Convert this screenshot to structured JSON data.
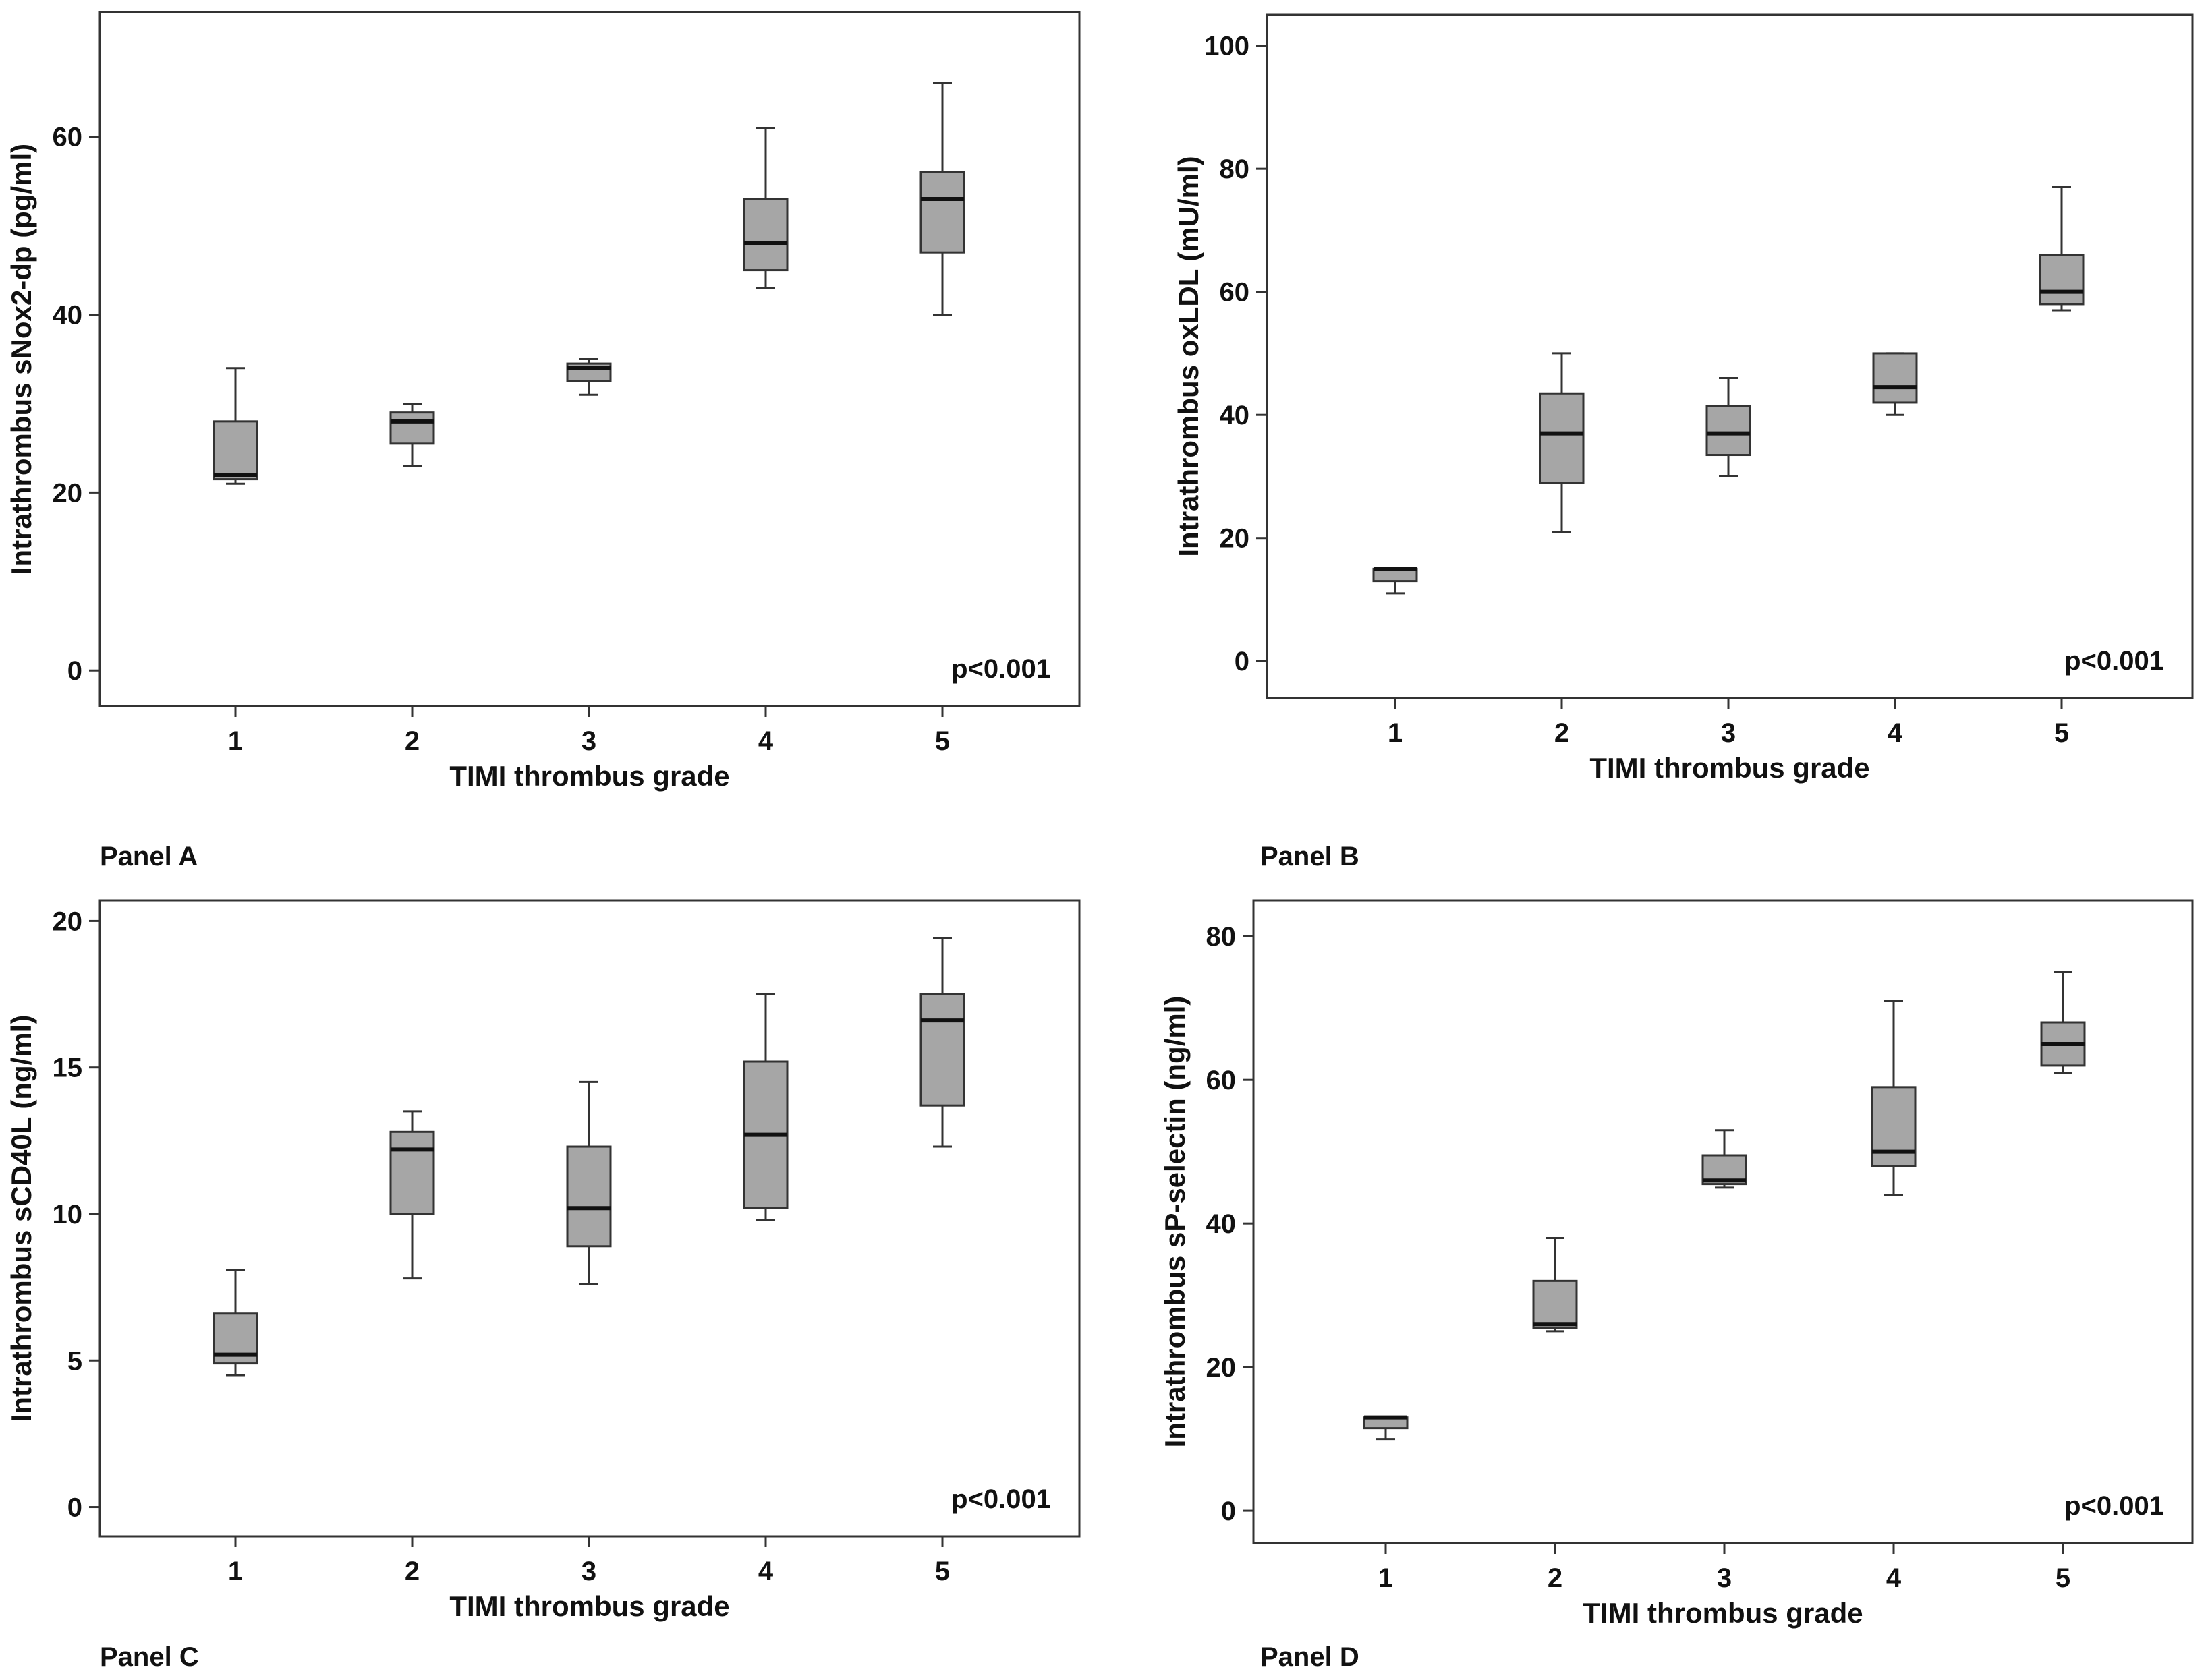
{
  "chart_data": [
    {
      "type": "box",
      "panel_label": "Panel A",
      "xlabel": "TIMI thrombus grade",
      "ylabel": "Intrathrombus sNox2-dp (pg/ml)",
      "categories": [
        "1",
        "2",
        "3",
        "4",
        "5"
      ],
      "ylim": [
        -4,
        74
      ],
      "yticks": [
        0,
        20,
        40,
        60
      ],
      "annotation": "p<0.001",
      "boxes": [
        {
          "min": 21,
          "q1": 21.5,
          "median": 22,
          "q3": 28,
          "max": 34
        },
        {
          "min": 23,
          "q1": 25.5,
          "median": 28,
          "q3": 29,
          "max": 30
        },
        {
          "min": 31,
          "q1": 32.5,
          "median": 34,
          "q3": 34.5,
          "max": 35
        },
        {
          "min": 43,
          "q1": 45,
          "median": 48,
          "q3": 53,
          "max": 61
        },
        {
          "min": 40,
          "q1": 47,
          "median": 53,
          "q3": 56,
          "max": 66
        }
      ]
    },
    {
      "type": "box",
      "panel_label": "Panel B",
      "xlabel": "TIMI thrombus grade",
      "ylabel": "Intrathrombus oxLDL (mU/ml)",
      "categories": [
        "1",
        "2",
        "3",
        "4",
        "5"
      ],
      "ylim": [
        -6,
        105
      ],
      "yticks": [
        0,
        20,
        40,
        60,
        80,
        100
      ],
      "annotation": "p<0.001",
      "boxes": [
        {
          "min": 11,
          "q1": 13,
          "median": 15,
          "q3": 15,
          "max": 15
        },
        {
          "min": 21,
          "q1": 29,
          "median": 37,
          "q3": 43.5,
          "max": 50
        },
        {
          "min": 30,
          "q1": 33.5,
          "median": 37,
          "q3": 41.5,
          "max": 46
        },
        {
          "min": 40,
          "q1": 42,
          "median": 44.5,
          "q3": 50,
          "max": 50
        },
        {
          "min": 57,
          "q1": 58,
          "median": 60,
          "q3": 66,
          "max": 77
        }
      ]
    },
    {
      "type": "box",
      "panel_label": "Panel C",
      "xlabel": "TIMI thrombus grade",
      "ylabel": "Intrathrombus sCD40L (ng/ml)",
      "categories": [
        "1",
        "2",
        "3",
        "4",
        "5"
      ],
      "ylim": [
        -1,
        20.7
      ],
      "yticks": [
        0,
        5,
        10,
        15,
        20
      ],
      "annotation": "p<0.001",
      "boxes": [
        {
          "min": 4.5,
          "q1": 4.9,
          "median": 5.2,
          "q3": 6.6,
          "max": 8.1
        },
        {
          "min": 7.8,
          "q1": 10,
          "median": 12.2,
          "q3": 12.8,
          "max": 13.5
        },
        {
          "min": 7.6,
          "q1": 8.9,
          "median": 10.2,
          "q3": 12.3,
          "max": 14.5
        },
        {
          "min": 9.8,
          "q1": 10.2,
          "median": 12.7,
          "q3": 15.2,
          "max": 17.5
        },
        {
          "min": 12.3,
          "q1": 13.7,
          "median": 16.6,
          "q3": 17.5,
          "max": 19.4
        }
      ]
    },
    {
      "type": "box",
      "panel_label": "Panel D",
      "xlabel": "TIMI thrombus grade",
      "ylabel": "Intrathrombus sP-selectin (ng/ml)",
      "categories": [
        "1",
        "2",
        "3",
        "4",
        "5"
      ],
      "ylim": [
        -4.5,
        85
      ],
      "yticks": [
        0,
        20,
        40,
        60,
        80
      ],
      "annotation": "p<0.001",
      "boxes": [
        {
          "min": 10,
          "q1": 11.5,
          "median": 13,
          "q3": 13,
          "max": 13
        },
        {
          "min": 25,
          "q1": 25.5,
          "median": 26,
          "q3": 32,
          "max": 38
        },
        {
          "min": 45,
          "q1": 45.5,
          "median": 46,
          "q3": 49.5,
          "max": 53
        },
        {
          "min": 44,
          "q1": 48,
          "median": 50,
          "q3": 59,
          "max": 71
        },
        {
          "min": 61,
          "q1": 62,
          "median": 65,
          "q3": 68,
          "max": 75
        }
      ]
    }
  ]
}
